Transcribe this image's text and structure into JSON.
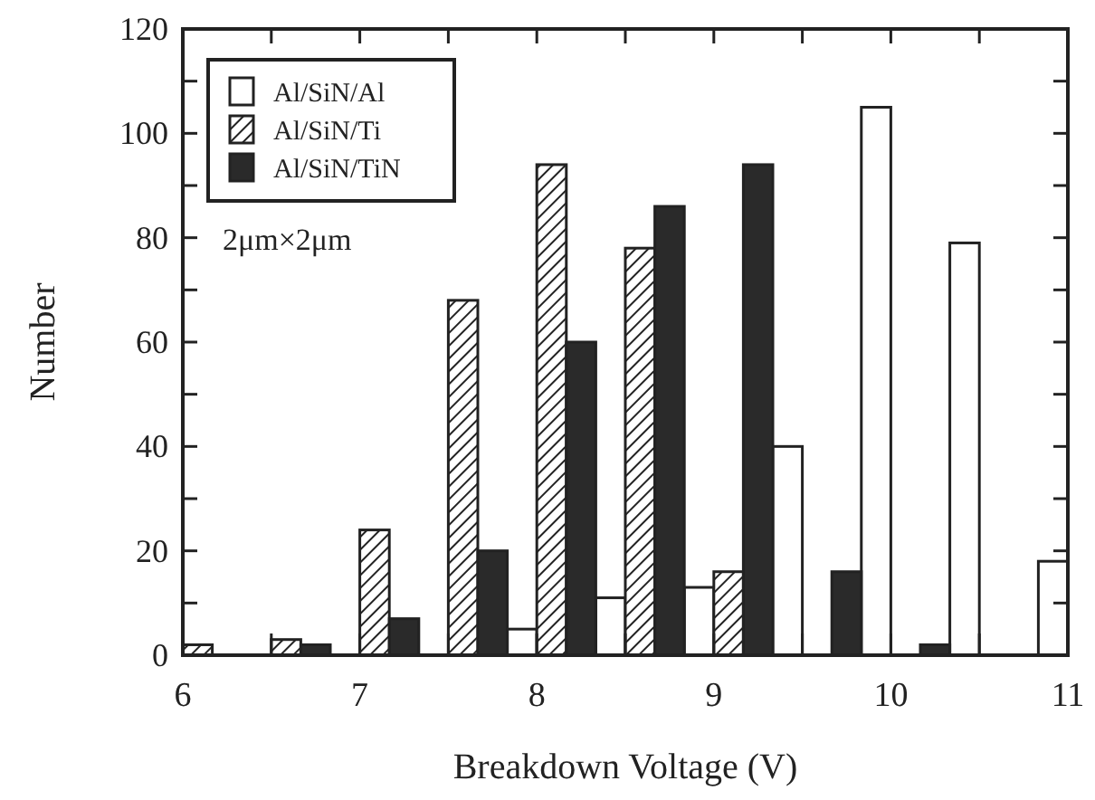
{
  "chart_data": {
    "type": "bar",
    "xlabel": "Breakdown Voltage (V)",
    "ylabel": "Number",
    "x": [
      6.25,
      6.75,
      7.25,
      7.75,
      8.25,
      8.75,
      9.25,
      9.75,
      10.25,
      10.75
    ],
    "series": [
      {
        "name": "Al/SiN/Al",
        "color": "#ffffff",
        "values": [
          0,
          0,
          0,
          5,
          11,
          13,
          40,
          105,
          79,
          18
        ]
      },
      {
        "name": "Al/SiN/Ti",
        "color": "#222222",
        "values": [
          2,
          3,
          24,
          68,
          94,
          78,
          16,
          0,
          0,
          0
        ]
      },
      {
        "name": "Al/SiN/TiN",
        "color": "#2a2a2a",
        "values": [
          0,
          2,
          7,
          20,
          60,
          86,
          94,
          16,
          2,
          0
        ]
      }
    ],
    "xlim": [
      6,
      11
    ],
    "xticks": [
      6,
      {
        "value": 6.5,
        "label": null
      },
      7,
      {
        "value": 7.5,
        "label": null
      },
      8,
      {
        "value": 8.5,
        "label": null
      },
      9,
      {
        "value": 9.5,
        "label": null
      },
      10,
      {
        "value": 10.5,
        "label": null
      },
      11
    ],
    "ylim": [
      0,
      120
    ],
    "yticks": [
      0,
      {
        "value": 10,
        "label": null
      },
      20,
      {
        "value": 30,
        "label": null
      },
      40,
      {
        "value": 50,
        "label": null
      },
      60,
      {
        "value": 70,
        "label": null
      },
      80,
      {
        "value": 90,
        "label": null
      },
      100,
      {
        "value": 110,
        "label": null
      },
      120
    ],
    "annotations": [
      "2μm×2μm"
    ],
    "legend": "top left",
    "grid": false
  }
}
